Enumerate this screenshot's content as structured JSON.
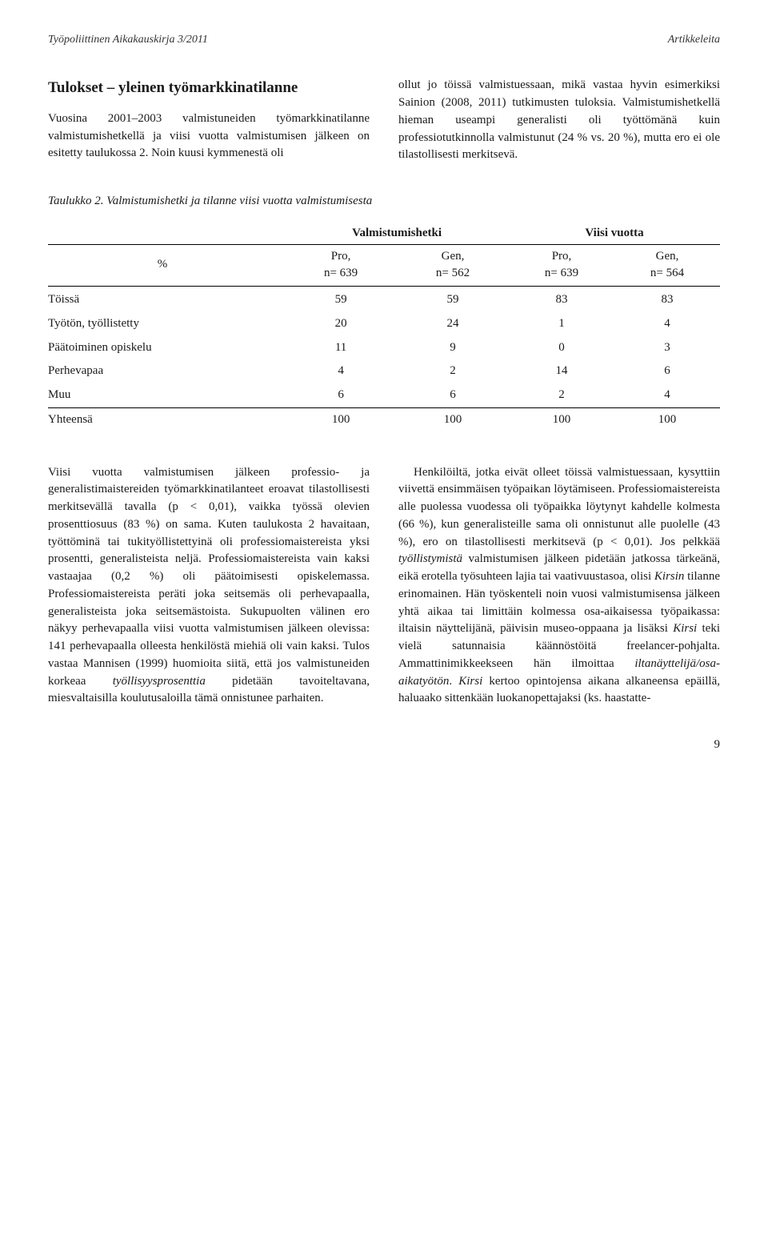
{
  "header": {
    "journal": "Työpoliittinen Aikakauskirja 3/2011",
    "section": "Artikkeleita"
  },
  "topBlock": {
    "left": {
      "heading": "Tulokset – yleinen työmarkkinatilanne",
      "para": "Vuosina 2001–2003 valmistuneiden työmarkkinatilanne valmistumishetkellä ja viisi vuotta valmistumisen jälkeen on esitetty taulukossa 2. Noin kuusi kymmenestä oli"
    },
    "right": {
      "para": "ollut jo töissä valmistuessaan, mikä vastaa hyvin esimerkiksi Sainion (2008, 2011) tutkimusten tuloksia. Valmistumishetkellä hieman useampi generalisti oli työttömänä kuin professiotutkinnolla valmistunut (24 % vs. 20 %), mutta ero ei ole tilastollisesti merkitsevä."
    }
  },
  "table": {
    "caption": "Taulukko 2. Valmistumishetki ja tilanne viisi vuotta valmistumisesta",
    "spanHeaders": [
      "Valmistumishetki",
      "Viisi vuotta"
    ],
    "cornerLabel": "%",
    "colHeaders": [
      "Pro,\nn= 639",
      "Gen,\nn= 562",
      "Pro,\nn= 639",
      "Gen,\nn= 564"
    ],
    "rows": [
      {
        "label": "Töissä",
        "cells": [
          59,
          59,
          83,
          83
        ]
      },
      {
        "label": "Työtön, työllistetty",
        "cells": [
          20,
          24,
          1,
          4
        ]
      },
      {
        "label": "Päätoiminen opiskelu",
        "cells": [
          11,
          9,
          0,
          3
        ]
      },
      {
        "label": "Perhevapaa",
        "cells": [
          4,
          2,
          14,
          6
        ]
      },
      {
        "label": "Muu",
        "cells": [
          6,
          6,
          2,
          4
        ]
      },
      {
        "label": "Yhteensä",
        "cells": [
          100,
          100,
          100,
          100
        ]
      }
    ],
    "style": {
      "border_color": "#000000",
      "font_size": 15,
      "header_align": "center",
      "first_col_align": "left"
    }
  },
  "bottomBlock": {
    "left": {
      "para_html": "Viisi vuotta valmistumisen jälkeen professio- ja generalistimaistereiden työmarkkinatilanteet eroavat tilastollisesti merkitsevällä tavalla (p < 0,01), vaikka työssä olevien prosenttiosuus (83 %) on sama. Kuten taulukosta 2 havaitaan, työttöminä tai tukityöllistettyinä oli professiomaistereista yksi prosentti, generalisteista neljä. Professiomaistereista vain kaksi vastaajaa (0,2 %) oli päätoimisesti opiskelemassa. Professiomaistereista peräti joka seitsemäs oli perhevapaalla, generalisteista joka seitsemästoista. Sukupuolten välinen ero näkyy perhevapaalla viisi vuotta valmistumisen jälkeen olevissa: 141 perhevapaalla olleesta henkilöstä miehiä oli vain kaksi. Tulos vastaa Mannisen (1999) huomioita siitä, että jos valmistuneiden korkeaa <em class=\"term\">työllisyysprosenttia</em> pidetään tavoiteltavana, miesvaltaisilla koulutusaloilla tämä onnistunee parhaiten."
    },
    "right": {
      "para_html": "&nbsp;&nbsp;&nbsp;Henkilöiltä, jotka eivät olleet töissä valmistuessaan, kysyttiin viivettä ensimmäisen työpaikan löytämiseen. Professiomaistereista alle puolessa vuodessa oli työpaikka löytynyt kahdelle kolmesta (66 %), kun generalisteille sama oli onnistunut alle puolelle (43 %), ero on tilastollisesti merkitsevä (p < 0,01). Jos pelkkää <em class=\"term\">työllistymistä</em> valmistumisen jälkeen pidetään jatkossa tärkeänä, eikä erotella työsuhteen lajia tai vaativuustasoa, olisi <em class=\"term\">Kirsin</em> tilanne erinomainen. Hän työskenteli noin vuosi valmistumisensa jälkeen yhtä aikaa tai limittäin kolmessa osa-aikaisessa työpaikassa: iltaisin näyttelijänä, päivisin museo-oppaana ja lisäksi <em class=\"term\">Kirsi</em> teki vielä satunnaisia käännöstöitä freelancer-pohjalta. Ammattinimikkeekseen hän ilmoittaa <em class=\"term\">iltanäyttelijä/osa-aikatyötön</em>. <em class=\"term\">Kirsi</em> kertoo opintojensa aikana alkaneensa epäillä, haluaako sittenkään luokanopettajaksi (ks. haastatte-"
    }
  },
  "pageNumber": "9"
}
